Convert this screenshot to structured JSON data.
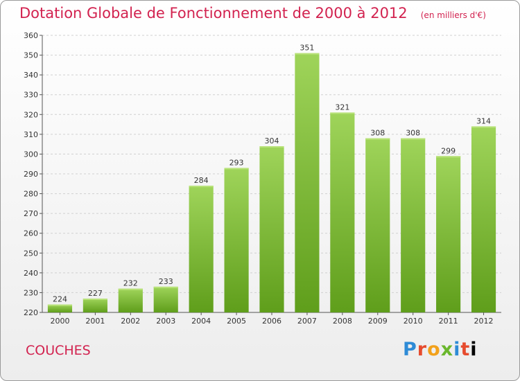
{
  "header": {
    "title": "Dotation Globale de Fonctionnement de 2000 à 2012",
    "subtitle": "(en milliers d'€)"
  },
  "footer": {
    "commune": "COUCHES",
    "logo": "Proxiti"
  },
  "colors": {
    "title": "#d2224f",
    "bar_top": "#9fd45a",
    "bar_bottom": "#5f9e1b",
    "grid": "#d0d0d0"
  },
  "chart_data": {
    "type": "bar",
    "title": "Dotation Globale de Fonctionnement de 2000 à 2012",
    "xlabel": "",
    "ylabel": "",
    "categories": [
      "2000",
      "2001",
      "2002",
      "2003",
      "2004",
      "2005",
      "2006",
      "2007",
      "2008",
      "2009",
      "2010",
      "2011",
      "2012"
    ],
    "values": [
      224,
      227,
      232,
      233,
      284,
      293,
      304,
      351,
      321,
      308,
      308,
      299,
      314
    ],
    "ylim": [
      220,
      360
    ],
    "yticks": [
      220,
      230,
      240,
      250,
      260,
      270,
      280,
      290,
      300,
      310,
      320,
      330,
      340,
      350,
      360
    ],
    "grid": true,
    "data_labels": true
  }
}
